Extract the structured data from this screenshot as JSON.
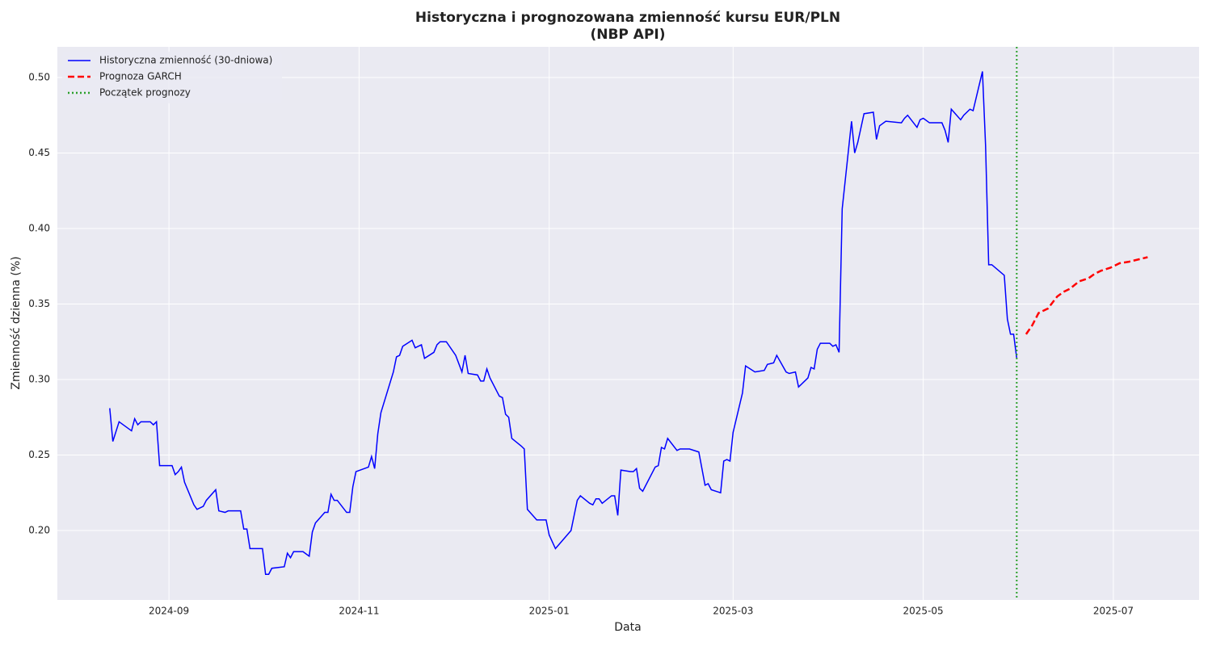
{
  "chart_data": {
    "type": "line",
    "title": [
      "Historyczna i prognozowana zmienność kursu EUR/PLN",
      "(NBP API)"
    ],
    "xlabel": "Data",
    "ylabel": "Zmienność dzienna (%)",
    "xlim": [
      19931.2,
      20297.5
    ],
    "ylim": [
      0.154,
      0.5203
    ],
    "xticks": [
      {
        "value": 19967,
        "label": "2024-09"
      },
      {
        "value": 20028,
        "label": "2024-11"
      },
      {
        "value": 20089,
        "label": "2025-01"
      },
      {
        "value": 20148,
        "label": "2025-03"
      },
      {
        "value": 20209,
        "label": "2025-05"
      },
      {
        "value": 20270,
        "label": "2025-07"
      }
    ],
    "yticks": [
      {
        "value": 0.2,
        "label": "0.20"
      },
      0.25,
      {
        "value": 0.3,
        "label": "0.30"
      },
      0.35,
      {
        "value": 0.4,
        "label": "0.40"
      },
      0.45,
      {
        "value": 0.5,
        "label": "0.50"
      }
    ],
    "grid": true,
    "legend": "upper left",
    "series": [
      {
        "name": "Historyczna zmienność (30-dniowa)",
        "color": "#0000ff",
        "dash": "solid",
        "x": [
          19948,
          19949,
          19951,
          19955,
          19956,
          19957,
          19958,
          19961,
          19962,
          19963,
          19964,
          19968,
          19969,
          19970,
          19971,
          19972,
          19975,
          19976,
          19978,
          19979,
          19982,
          19983,
          19985,
          19986,
          19990,
          19991,
          19992,
          19993,
          19996,
          19997,
          19998,
          19999,
          20000,
          20004,
          20005,
          20006,
          20007,
          20010,
          20012,
          20013,
          20014,
          20017,
          20018,
          20019,
          20020,
          20021,
          20024,
          20025,
          20026,
          20027,
          20031,
          20032,
          20033,
          20034,
          20035,
          20039,
          20040,
          20041,
          20042,
          20045,
          20046,
          20048,
          20049,
          20052,
          20053,
          20054,
          20056,
          20059,
          20061,
          20062,
          20063,
          20066,
          20067,
          20068,
          20069,
          20070,
          20073,
          20074,
          20075,
          20076,
          20077,
          20080,
          20081,
          20082,
          20085,
          20088,
          20089,
          20091,
          20096,
          20097,
          20098,
          20099,
          20102,
          20103,
          20104,
          20105,
          20106,
          20109,
          20110,
          20111,
          20112,
          20115,
          20116,
          20117,
          20118,
          20119,
          20123,
          20124,
          20125,
          20126,
          20127,
          20130,
          20131,
          20134,
          20137,
          20139,
          20140,
          20141,
          20144,
          20145,
          20146,
          20147,
          20148,
          20151,
          20152,
          20155,
          20158,
          20159,
          20161,
          20162,
          20165,
          20166,
          20168,
          20169,
          20172,
          20173,
          20174,
          20175,
          20176,
          20179,
          20180,
          20181,
          20182,
          20183,
          20186,
          20187,
          20188,
          20190,
          20193,
          20194,
          20195,
          20197,
          20202,
          20203,
          20204,
          20207,
          20208,
          20209,
          20211,
          20215,
          20216,
          20217,
          20218,
          20221,
          20222,
          20224,
          20225,
          20228,
          20229,
          20230,
          20231,
          20235,
          20236,
          20237,
          20238,
          20239
        ],
        "values": [
          0.281,
          0.259,
          0.272,
          0.266,
          0.274,
          0.27,
          0.272,
          0.272,
          0.27,
          0.272,
          0.243,
          0.243,
          0.237,
          0.239,
          0.242,
          0.232,
          0.217,
          0.214,
          0.216,
          0.22,
          0.227,
          0.213,
          0.212,
          0.213,
          0.213,
          0.201,
          0.201,
          0.188,
          0.188,
          0.188,
          0.171,
          0.171,
          0.175,
          0.176,
          0.185,
          0.182,
          0.186,
          0.186,
          0.183,
          0.199,
          0.205,
          0.212,
          0.212,
          0.224,
          0.22,
          0.22,
          0.212,
          0.212,
          0.229,
          0.239,
          0.242,
          0.249,
          0.241,
          0.264,
          0.278,
          0.305,
          0.315,
          0.316,
          0.322,
          0.326,
          0.321,
          0.323,
          0.314,
          0.318,
          0.323,
          0.325,
          0.325,
          0.316,
          0.305,
          0.316,
          0.304,
          0.303,
          0.299,
          0.299,
          0.307,
          0.301,
          0.289,
          0.288,
          0.277,
          0.275,
          0.261,
          0.256,
          0.254,
          0.214,
          0.207,
          0.207,
          0.197,
          0.188,
          0.2,
          0.21,
          0.22,
          0.223,
          0.218,
          0.217,
          0.221,
          0.221,
          0.218,
          0.223,
          0.223,
          0.21,
          0.24,
          0.239,
          0.239,
          0.241,
          0.228,
          0.226,
          0.242,
          0.243,
          0.255,
          0.254,
          0.261,
          0.253,
          0.254,
          0.254,
          0.252,
          0.23,
          0.231,
          0.227,
          0.225,
          0.246,
          0.247,
          0.246,
          0.265,
          0.291,
          0.309,
          0.305,
          0.306,
          0.31,
          0.311,
          0.316,
          0.305,
          0.304,
          0.305,
          0.295,
          0.301,
          0.308,
          0.307,
          0.32,
          0.324,
          0.324,
          0.322,
          0.323,
          0.318,
          0.413,
          0.471,
          0.45,
          0.457,
          0.476,
          0.477,
          0.459,
          0.468,
          0.471,
          0.47,
          0.473,
          0.475,
          0.467,
          0.472,
          0.473,
          0.47,
          0.47,
          0.465,
          0.457,
          0.479,
          0.472,
          0.475,
          0.479,
          0.478,
          0.504,
          0.455,
          0.376,
          0.376,
          0.369,
          0.34,
          0.33,
          0.33,
          0.314
        ]
      },
      {
        "name": "Prognoza GARCH",
        "color": "#ff0000",
        "dash": "dashed",
        "x": [
          20242,
          20244,
          20246,
          20249,
          20252,
          20254,
          20256,
          20259,
          20262,
          20264,
          20266,
          20269,
          20272,
          20275,
          20277,
          20281
        ],
        "values": [
          0.33,
          0.336,
          0.344,
          0.347,
          0.355,
          0.358,
          0.36,
          0.365,
          0.367,
          0.37,
          0.372,
          0.374,
          0.377,
          0.378,
          0.379,
          0.381
        ]
      }
    ],
    "vlines": [
      {
        "name": "Początek prognozy",
        "color": "#2ca02c",
        "dash": "dotted",
        "x": 20239
      }
    ]
  }
}
